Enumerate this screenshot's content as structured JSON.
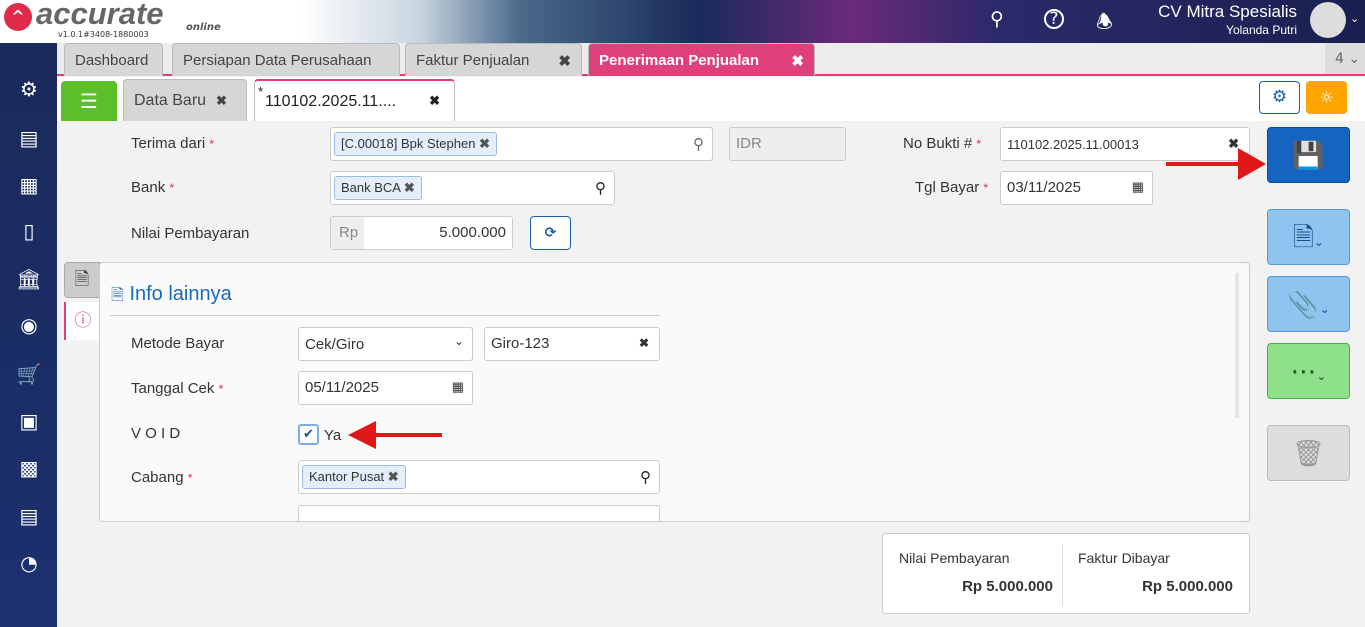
{
  "header": {
    "logo_text": "accurate",
    "logo_sub": "online",
    "version": "v1.0.1#3408-1880003",
    "company": "CV Mitra Spesialis",
    "user": "Yolanda Putri"
  },
  "main_tabs": [
    {
      "label": "Dashboard"
    },
    {
      "label": "Persiapan Data Perusahaan"
    },
    {
      "label": "Faktur Penjualan"
    },
    {
      "label": "Penerimaan Penjualan"
    }
  ],
  "tab_count": "4",
  "sub_tabs": [
    {
      "label": "Data Baru"
    },
    {
      "label": "110102.2025.11....",
      "modified": "*"
    }
  ],
  "form": {
    "terima_dari_label": "Terima dari",
    "terima_dari_value": "[C.00018] Bpk Stephen",
    "currency": "IDR",
    "bank_label": "Bank",
    "bank_value": "Bank BCA",
    "nilai_label": "Nilai Pembayaran",
    "nilai_prefix": "Rp",
    "nilai_value": "5.000.000",
    "no_bukti_label": "No Bukti #",
    "no_bukti_value": "110102.2025.11.00013",
    "tgl_bayar_label": "Tgl Bayar",
    "tgl_bayar_value": "03/11/2025"
  },
  "info": {
    "title": "Info lainnya",
    "metode_label": "Metode Bayar",
    "metode_value": "Cek/Giro",
    "giro_value": "Giro-123",
    "tanggal_cek_label": "Tanggal Cek",
    "tanggal_cek_value": "05/11/2025",
    "void_label": "V O I D",
    "void_checked": true,
    "void_option": "Ya",
    "cabang_label": "Cabang",
    "cabang_value": "Kantor Pusat"
  },
  "summary": {
    "nilai_label": "Nilai Pembayaran",
    "nilai_value": "Rp 5.000.000",
    "faktur_label": "Faktur Dibayar",
    "faktur_value": "Rp 5.000.000"
  },
  "colors": {
    "accent_pink": "#e0407a",
    "save_blue": "#1565c0",
    "annotation_red": "#e01818"
  }
}
